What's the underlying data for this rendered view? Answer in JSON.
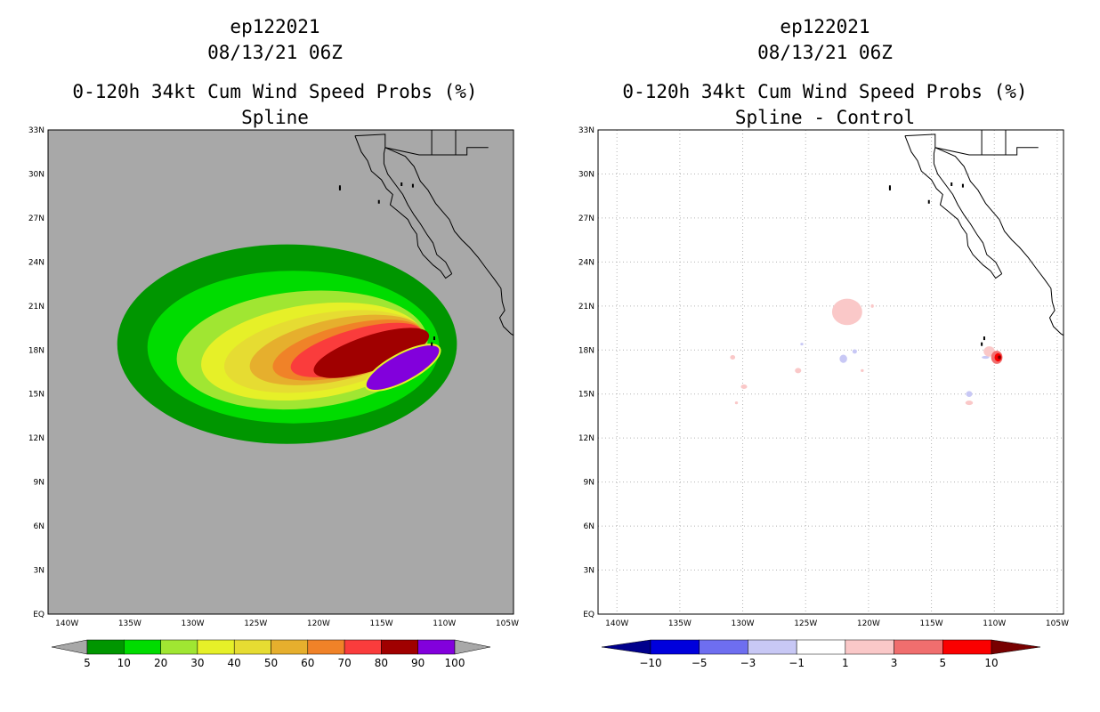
{
  "chart_data": [
    {
      "type": "heatmap",
      "title_lines": [
        "ep122021",
        "08/13/21 06Z",
        "0-120h 34kt Cum Wind Speed Probs (%)",
        "Spline"
      ],
      "xlabel": "",
      "ylabel": "",
      "x_tick_labels": [
        "140W",
        "135W",
        "130W",
        "125W",
        "120W",
        "115W",
        "110W",
        "105W"
      ],
      "x_tick_values": [
        -140,
        -135,
        -130,
        -125,
        -120,
        -115,
        -110,
        -105
      ],
      "y_tick_labels": [
        "EQ",
        "3N",
        "6N",
        "9N",
        "12N",
        "15N",
        "18N",
        "21N",
        "24N",
        "27N",
        "30N",
        "33N"
      ],
      "y_tick_values": [
        0,
        3,
        6,
        9,
        12,
        15,
        18,
        21,
        24,
        27,
        30,
        33
      ],
      "xlim": [
        -141.5,
        -104.5
      ],
      "ylim": [
        0,
        33
      ],
      "grid": false,
      "background_color": "#a8a8a8",
      "colorbar": {
        "labels": [
          "5",
          "10",
          "20",
          "30",
          "40",
          "50",
          "60",
          "70",
          "80",
          "90",
          "100"
        ],
        "colors": [
          "#009600",
          "#00dc00",
          "#a0e632",
          "#e6f028",
          "#e6dc32",
          "#e6af2d",
          "#f08228",
          "#fa3c3c",
          "#a00000",
          "#8200dc"
        ],
        "extend_colors": [
          "#a8a8a8",
          "#a8a8a8"
        ]
      },
      "contours": [
        {
          "level": 5,
          "color": "#009600",
          "center": [
            -122.5,
            18.4
          ],
          "rx": 13.5,
          "ry": 6.8,
          "tilt": 0
        },
        {
          "level": 10,
          "color": "#00dc00",
          "center": [
            -122.0,
            18.2
          ],
          "rx": 11.6,
          "ry": 5.2,
          "tilt": 0
        },
        {
          "level": 20,
          "color": "#a0e632",
          "center": [
            -121.3,
            18.0
          ],
          "rx": 10.0,
          "ry": 4.0,
          "tilt": -5
        },
        {
          "level": 30,
          "color": "#e6f028",
          "center": [
            -120.5,
            17.9
          ],
          "rx": 8.9,
          "ry": 3.2,
          "tilt": -8
        },
        {
          "level": 40,
          "color": "#e6dc32",
          "center": [
            -119.6,
            17.9
          ],
          "rx": 8.0,
          "ry": 2.6,
          "tilt": -10
        },
        {
          "level": 50,
          "color": "#e6af2d",
          "center": [
            -118.6,
            18.0
          ],
          "rx": 7.0,
          "ry": 2.1,
          "tilt": -12
        },
        {
          "level": 60,
          "color": "#f08228",
          "center": [
            -117.7,
            18.0
          ],
          "rx": 6.1,
          "ry": 1.7,
          "tilt": -14
        },
        {
          "level": 70,
          "color": "#fa3c3c",
          "center": [
            -117.0,
            18.0
          ],
          "rx": 5.4,
          "ry": 1.4,
          "tilt": -16
        },
        {
          "level": 80,
          "color": "#a00000",
          "center": [
            -115.8,
            17.8
          ],
          "rx": 4.8,
          "ry": 1.2,
          "tilt": -18
        },
        {
          "level": 90,
          "color": "#8200dc",
          "center": [
            -113.3,
            16.8
          ],
          "rx": 3.3,
          "ry": 0.95,
          "tilt": -28
        }
      ]
    },
    {
      "type": "heatmap",
      "title_lines": [
        "ep122021",
        "08/13/21 06Z",
        "0-120h 34kt Cum Wind Speed Probs (%)",
        "Spline - Control"
      ],
      "xlabel": "",
      "ylabel": "",
      "x_tick_labels": [
        "140W",
        "135W",
        "130W",
        "125W",
        "120W",
        "115W",
        "110W",
        "105W"
      ],
      "x_tick_values": [
        -140,
        -135,
        -130,
        -125,
        -120,
        -115,
        -110,
        -105
      ],
      "y_tick_labels": [
        "EQ",
        "3N",
        "6N",
        "9N",
        "12N",
        "15N",
        "18N",
        "21N",
        "24N",
        "27N",
        "30N",
        "33N"
      ],
      "y_tick_values": [
        0,
        3,
        6,
        9,
        12,
        15,
        18,
        21,
        24,
        27,
        30,
        33
      ],
      "xlim": [
        -141.5,
        -104.5
      ],
      "ylim": [
        0,
        33
      ],
      "grid": true,
      "background_color": "#ffffff",
      "colorbar": {
        "labels": [
          "-10",
          "-5",
          "-3",
          "-1",
          "1",
          "3",
          "5",
          "10"
        ],
        "colors": [
          "#0000dc",
          "#6e6ef0",
          "#c8c8f5",
          "#ffffff",
          "#fac8c8",
          "#f06e6e",
          "#fa0000"
        ],
        "extend_colors": [
          "#00008c",
          "#780000"
        ]
      },
      "anomalies": [
        {
          "lon": -121.7,
          "lat": 20.6,
          "rx": 1.2,
          "ry": 0.9,
          "color": "#fac8c8"
        },
        {
          "lon": -130.8,
          "lat": 17.5,
          "rx": 0.2,
          "ry": 0.15,
          "color": "#fac8c8"
        },
        {
          "lon": -129.9,
          "lat": 15.5,
          "rx": 0.25,
          "ry": 0.15,
          "color": "#fac8c8"
        },
        {
          "lon": -130.5,
          "lat": 14.4,
          "rx": 0.12,
          "ry": 0.1,
          "color": "#fac8c8"
        },
        {
          "lon": -125.6,
          "lat": 16.6,
          "rx": 0.25,
          "ry": 0.18,
          "color": "#fac8c8"
        },
        {
          "lon": -120.5,
          "lat": 16.6,
          "rx": 0.12,
          "ry": 0.1,
          "color": "#fac8c8"
        },
        {
          "lon": -119.7,
          "lat": 21.0,
          "rx": 0.12,
          "ry": 0.12,
          "color": "#fac8c8"
        },
        {
          "lon": -125.3,
          "lat": 18.4,
          "rx": 0.12,
          "ry": 0.08,
          "color": "#c8c8f5"
        },
        {
          "lon": -122.0,
          "lat": 17.4,
          "rx": 0.3,
          "ry": 0.28,
          "color": "#c8c8f5"
        },
        {
          "lon": -121.1,
          "lat": 17.9,
          "rx": 0.18,
          "ry": 0.15,
          "color": "#c8c8f5"
        },
        {
          "lon": -112.0,
          "lat": 15.0,
          "rx": 0.25,
          "ry": 0.2,
          "color": "#c8c8f5"
        },
        {
          "lon": -112.0,
          "lat": 14.4,
          "rx": 0.3,
          "ry": 0.15,
          "color": "#fac8c8"
        },
        {
          "lon": -110.7,
          "lat": 17.5,
          "rx": 0.3,
          "ry": 0.1,
          "color": "#c8c8f5"
        },
        {
          "lon": -110.4,
          "lat": 17.9,
          "rx": 0.45,
          "ry": 0.35,
          "color": "#fac8c8"
        },
        {
          "lon": -109.8,
          "lat": 17.5,
          "rx": 0.45,
          "ry": 0.45,
          "color": "#f06e6e"
        },
        {
          "lon": -109.7,
          "lat": 17.5,
          "rx": 0.28,
          "ry": 0.28,
          "color": "#fa0000"
        },
        {
          "lon": -109.6,
          "lat": 17.5,
          "rx": 0.12,
          "ry": 0.12,
          "color": "#780000"
        }
      ]
    }
  ],
  "coastline": {
    "color": "#000000",
    "baja_west": [
      [
        -117.1,
        32.6
      ],
      [
        -116.6,
        31.5
      ],
      [
        -116.1,
        30.9
      ],
      [
        -115.8,
        30.2
      ],
      [
        -115.0,
        29.6
      ],
      [
        -114.6,
        29.0
      ],
      [
        -114.1,
        28.6
      ],
      [
        -114.3,
        27.9
      ],
      [
        -113.6,
        27.4
      ],
      [
        -112.9,
        26.9
      ],
      [
        -112.6,
        26.4
      ],
      [
        -112.2,
        25.9
      ],
      [
        -112.1,
        25.1
      ],
      [
        -111.7,
        24.5
      ],
      [
        -110.9,
        23.8
      ],
      [
        -110.3,
        23.4
      ],
      [
        -109.9,
        22.9
      ],
      [
        -109.4,
        23.2
      ]
    ],
    "baja_east": [
      [
        -109.4,
        23.2
      ],
      [
        -109.9,
        24.0
      ],
      [
        -110.6,
        24.5
      ],
      [
        -110.9,
        25.3
      ],
      [
        -111.4,
        25.9
      ],
      [
        -111.9,
        26.6
      ],
      [
        -112.4,
        27.2
      ],
      [
        -112.9,
        27.9
      ],
      [
        -113.3,
        28.6
      ],
      [
        -113.9,
        29.3
      ],
      [
        -114.5,
        30.0
      ],
      [
        -114.8,
        30.7
      ],
      [
        -114.8,
        31.4
      ],
      [
        -114.7,
        31.8
      ]
    ],
    "mainland": [
      [
        -114.7,
        31.8
      ],
      [
        -113.9,
        31.5
      ],
      [
        -113.1,
        31.2
      ],
      [
        -112.4,
        30.5
      ],
      [
        -111.9,
        29.5
      ],
      [
        -111.3,
        28.9
      ],
      [
        -110.7,
        28.0
      ],
      [
        -110.2,
        27.5
      ],
      [
        -109.6,
        26.9
      ],
      [
        -109.2,
        26.1
      ],
      [
        -108.6,
        25.5
      ],
      [
        -108.0,
        25.0
      ],
      [
        -107.3,
        24.3
      ],
      [
        -106.7,
        23.6
      ],
      [
        -106.0,
        22.8
      ],
      [
        -105.5,
        22.2
      ],
      [
        -105.4,
        21.3
      ],
      [
        -105.2,
        20.7
      ],
      [
        -105.6,
        20.2
      ],
      [
        -105.3,
        19.6
      ],
      [
        -104.7,
        19.1
      ],
      [
        -104.3,
        18.9
      ]
    ],
    "border": [
      [
        -117.1,
        32.6
      ],
      [
        -114.7,
        32.7
      ],
      [
        -114.7,
        31.8
      ],
      [
        -112.0,
        31.3
      ],
      [
        -111.0,
        31.3
      ],
      [
        -108.2,
        31.3
      ],
      [
        -108.2,
        31.8
      ],
      [
        -106.5,
        31.8
      ]
    ],
    "border_v1": [
      [
        -111.0,
        31.3
      ],
      [
        -111.0,
        33.0
      ]
    ],
    "border_v2": [
      [
        -109.1,
        31.3
      ],
      [
        -109.1,
        33.0
      ]
    ],
    "islands": [
      [
        -118.3,
        29.1
      ],
      [
        -115.2,
        28.1
      ],
      [
        -118.3,
        29.0
      ],
      [
        -112.5,
        29.2
      ],
      [
        -113.4,
        29.3
      ],
      [
        -110.8,
        18.8
      ],
      [
        -111.0,
        18.4
      ]
    ]
  }
}
